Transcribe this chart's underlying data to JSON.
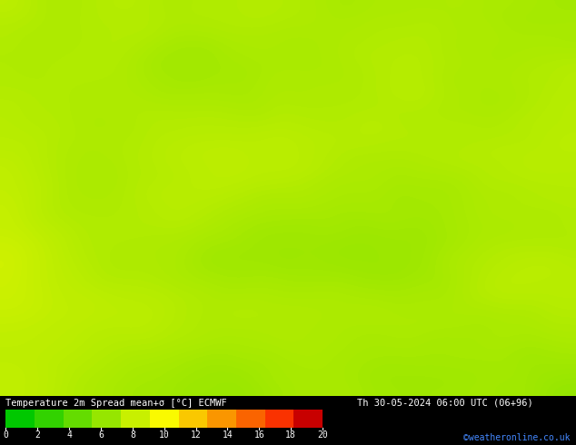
{
  "title_left": "Temperature 2m Spread mean+σ [°C] ECMWF",
  "title_right": "Th 30-05-2024 06:00 UTC (06+96)",
  "credit": "©weatheronline.co.uk",
  "colorbar_ticks": [
    0,
    2,
    4,
    6,
    8,
    10,
    12,
    14,
    16,
    18,
    20
  ],
  "colorbar_colors": [
    "#00c800",
    "#32d200",
    "#64dc00",
    "#96e600",
    "#c8f000",
    "#fafa00",
    "#fac800",
    "#fa9600",
    "#fa6400",
    "#fa3200",
    "#c80000",
    "#960000"
  ],
  "background_color": "#00c800",
  "map_dominant_color": "#00c800",
  "fig_width": 6.34,
  "fig_height": 4.9,
  "dpi": 100
}
